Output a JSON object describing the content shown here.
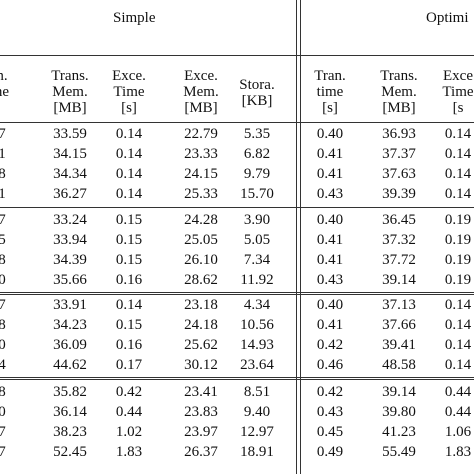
{
  "group_headers": [
    "Simple",
    "Optimi"
  ],
  "col_headers": [
    [
      "n.",
      "ne"
    ],
    [
      "Trans.",
      "Mem.",
      "[MB]"
    ],
    [
      "Exce.",
      "Time",
      "[s]"
    ],
    [
      "Exce.",
      "Mem.",
      "[MB]"
    ],
    [
      "Stora.",
      "[KB]"
    ],
    [
      "Tran.",
      "time",
      "[s]"
    ],
    [
      "Trans.",
      "Mem.",
      "[MB]"
    ],
    [
      "Exce",
      "Time",
      "[s"
    ]
  ],
  "rows": [
    [
      "7",
      "33.59",
      "0.14",
      "22.79",
      "5.35",
      "0.40",
      "36.93",
      "0.14"
    ],
    [
      "1",
      "34.15",
      "0.14",
      "23.33",
      "6.82",
      "0.41",
      "37.37",
      "0.14"
    ],
    [
      "8",
      "34.34",
      "0.14",
      "24.15",
      "9.79",
      "0.41",
      "37.63",
      "0.14"
    ],
    [
      "1",
      "36.27",
      "0.14",
      "25.33",
      "15.70",
      "0.43",
      "39.39",
      "0.14"
    ],
    [
      "7",
      "33.24",
      "0.15",
      "24.28",
      "3.90",
      "0.40",
      "36.45",
      "0.19"
    ],
    [
      "5",
      "33.94",
      "0.15",
      "25.05",
      "5.05",
      "0.41",
      "37.32",
      "0.19"
    ],
    [
      "8",
      "34.39",
      "0.15",
      "26.10",
      "7.34",
      "0.41",
      "37.72",
      "0.19"
    ],
    [
      "0",
      "35.66",
      "0.16",
      "28.62",
      "11.92",
      "0.43",
      "39.14",
      "0.19"
    ],
    [
      "7",
      "33.91",
      "0.14",
      "23.18",
      "4.34",
      "0.40",
      "37.13",
      "0.14"
    ],
    [
      "8",
      "34.23",
      "0.15",
      "24.18",
      "10.56",
      "0.41",
      "37.66",
      "0.14"
    ],
    [
      "0",
      "36.09",
      "0.16",
      "25.62",
      "14.93",
      "0.42",
      "39.41",
      "0.14"
    ],
    [
      "4",
      "44.62",
      "0.17",
      "30.12",
      "23.64",
      "0.46",
      "48.58",
      "0.14"
    ],
    [
      "8",
      "35.82",
      "0.42",
      "23.41",
      "8.51",
      "0.42",
      "39.14",
      "0.44"
    ],
    [
      "0",
      "36.14",
      "0.44",
      "23.83",
      "9.40",
      "0.43",
      "39.80",
      "0.44"
    ],
    [
      "7",
      "38.23",
      "1.02",
      "23.97",
      "12.97",
      "0.45",
      "41.23",
      "1.06"
    ],
    [
      "7",
      "52.45",
      "1.83",
      "26.37",
      "18.91",
      "0.49",
      "55.49",
      "1.83"
    ]
  ]
}
